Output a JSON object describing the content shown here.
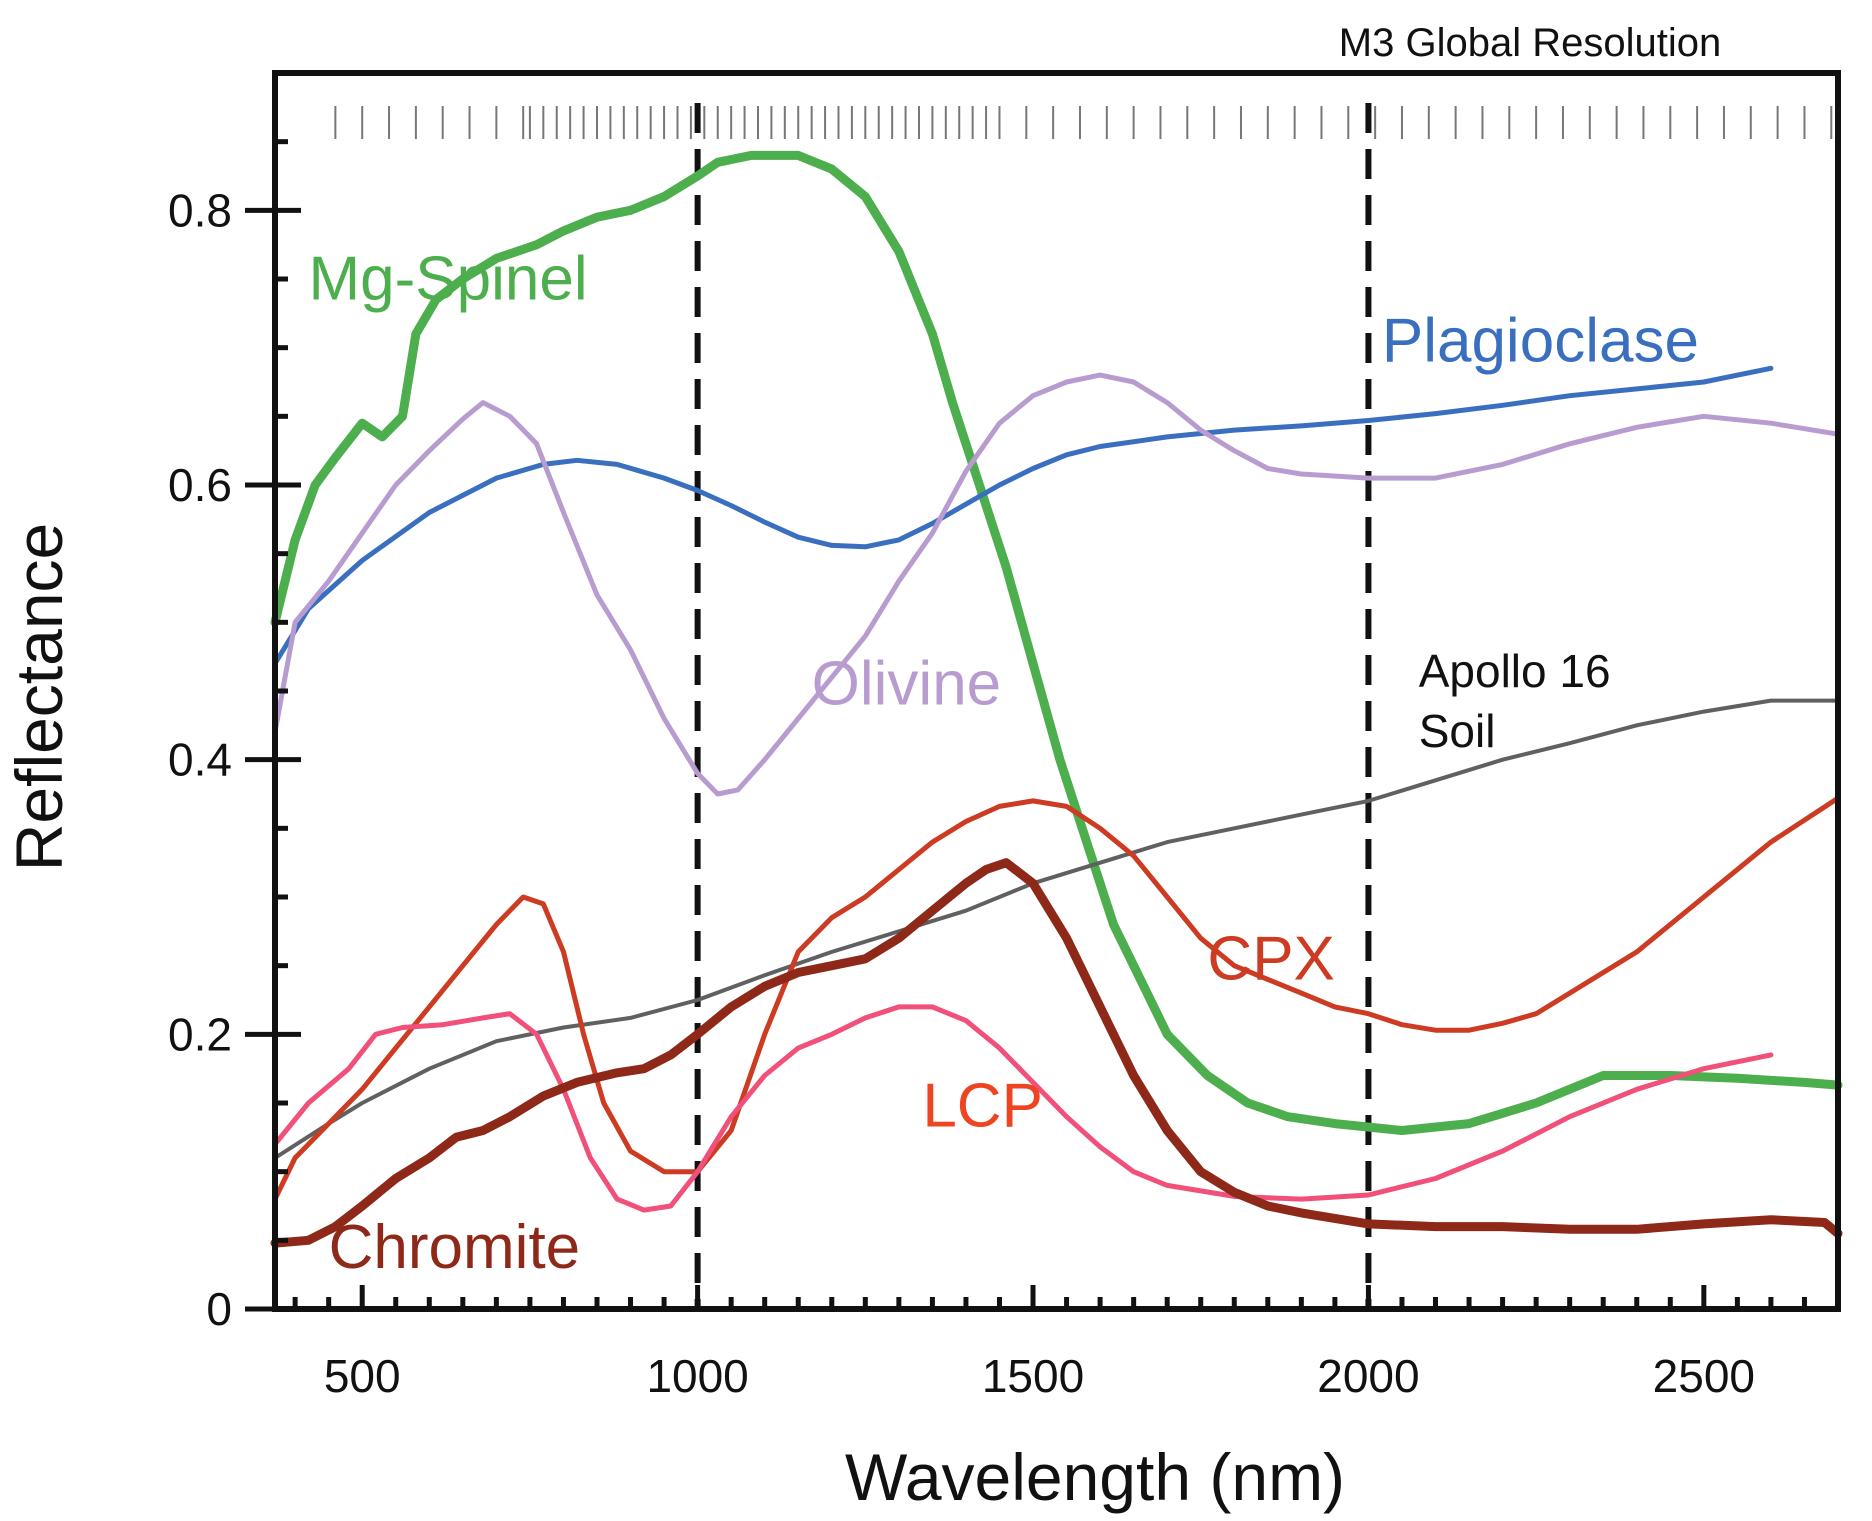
{
  "chart_data": {
    "type": "line",
    "title": "",
    "annotation_top": "M3 Global Resolution",
    "xlabel": "Wavelength (nm)",
    "ylabel": "Reflectance",
    "xlim": [
      370,
      2700
    ],
    "ylim": [
      0,
      0.9
    ],
    "x_ticks": [
      500,
      1000,
      1500,
      2000,
      2500
    ],
    "y_ticks": [
      0,
      0.2,
      0.4,
      0.6,
      0.8
    ],
    "x_tick_labels": [
      "500",
      "1000",
      "1500",
      "2000",
      "2500"
    ],
    "y_tick_labels": [
      "0",
      "0.2",
      "0.4",
      "0.6",
      "0.8"
    ],
    "vertical_dashed_lines": [
      1000,
      2000
    ],
    "m3_bands": [
      460,
      500,
      540,
      580,
      620,
      660,
      700,
      740,
      750,
      770,
      790,
      810,
      830,
      850,
      870,
      890,
      910,
      930,
      950,
      970,
      990,
      1010,
      1030,
      1050,
      1070,
      1090,
      1110,
      1130,
      1150,
      1170,
      1190,
      1210,
      1230,
      1250,
      1270,
      1290,
      1310,
      1330,
      1350,
      1370,
      1390,
      1410,
      1430,
      1450,
      1490,
      1530,
      1570,
      1610,
      1650,
      1690,
      1730,
      1770,
      1810,
      1850,
      1890,
      1930,
      1970,
      2010,
      2050,
      2090,
      2130,
      2170,
      2210,
      2250,
      2290,
      2330,
      2370,
      2410,
      2450,
      2490,
      2530,
      2570,
      2610,
      2650,
      2690
    ],
    "grid": false,
    "legend": "none",
    "series": [
      {
        "name": "Mg-Spinel",
        "color": "#4cae4c",
        "stroke_width": 9,
        "label_x": 420,
        "label_y": 0.735,
        "points": [
          [
            370,
            0.5
          ],
          [
            400,
            0.56
          ],
          [
            430,
            0.6
          ],
          [
            460,
            0.62
          ],
          [
            500,
            0.645
          ],
          [
            530,
            0.635
          ],
          [
            560,
            0.65
          ],
          [
            580,
            0.71
          ],
          [
            610,
            0.735
          ],
          [
            650,
            0.75
          ],
          [
            700,
            0.765
          ],
          [
            760,
            0.775
          ],
          [
            800,
            0.785
          ],
          [
            850,
            0.795
          ],
          [
            900,
            0.8
          ],
          [
            950,
            0.81
          ],
          [
            1000,
            0.825
          ],
          [
            1030,
            0.835
          ],
          [
            1080,
            0.84
          ],
          [
            1150,
            0.84
          ],
          [
            1200,
            0.83
          ],
          [
            1250,
            0.81
          ],
          [
            1300,
            0.77
          ],
          [
            1350,
            0.71
          ],
          [
            1380,
            0.66
          ],
          [
            1420,
            0.6
          ],
          [
            1460,
            0.54
          ],
          [
            1500,
            0.47
          ],
          [
            1540,
            0.4
          ],
          [
            1580,
            0.34
          ],
          [
            1620,
            0.28
          ],
          [
            1660,
            0.24
          ],
          [
            1700,
            0.2
          ],
          [
            1760,
            0.17
          ],
          [
            1820,
            0.15
          ],
          [
            1880,
            0.14
          ],
          [
            1950,
            0.135
          ],
          [
            2050,
            0.13
          ],
          [
            2150,
            0.135
          ],
          [
            2250,
            0.15
          ],
          [
            2350,
            0.17
          ],
          [
            2450,
            0.17
          ],
          [
            2550,
            0.168
          ],
          [
            2650,
            0.165
          ],
          [
            2700,
            0.163
          ]
        ]
      },
      {
        "name": "Plagioclase",
        "color": "#3a6fc0",
        "stroke_width": 5,
        "label_x": 2020,
        "label_y": 0.69,
        "points": [
          [
            370,
            0.47
          ],
          [
            420,
            0.51
          ],
          [
            500,
            0.545
          ],
          [
            600,
            0.58
          ],
          [
            700,
            0.605
          ],
          [
            770,
            0.615
          ],
          [
            820,
            0.618
          ],
          [
            880,
            0.615
          ],
          [
            950,
            0.605
          ],
          [
            1000,
            0.596
          ],
          [
            1050,
            0.585
          ],
          [
            1100,
            0.573
          ],
          [
            1150,
            0.562
          ],
          [
            1200,
            0.556
          ],
          [
            1250,
            0.555
          ],
          [
            1300,
            0.56
          ],
          [
            1350,
            0.572
          ],
          [
            1400,
            0.586
          ],
          [
            1450,
            0.6
          ],
          [
            1500,
            0.612
          ],
          [
            1550,
            0.622
          ],
          [
            1600,
            0.628
          ],
          [
            1700,
            0.635
          ],
          [
            1800,
            0.64
          ],
          [
            1900,
            0.643
          ],
          [
            2000,
            0.647
          ],
          [
            2100,
            0.652
          ],
          [
            2200,
            0.658
          ],
          [
            2300,
            0.665
          ],
          [
            2400,
            0.67
          ],
          [
            2500,
            0.675
          ],
          [
            2600,
            0.685
          ]
        ]
      },
      {
        "name": "Olivine",
        "color": "#b89cd0",
        "stroke_width": 5,
        "label_x": 1170,
        "label_y": 0.44,
        "points": [
          [
            370,
            0.42
          ],
          [
            400,
            0.5
          ],
          [
            450,
            0.53
          ],
          [
            500,
            0.565
          ],
          [
            550,
            0.6
          ],
          [
            600,
            0.625
          ],
          [
            650,
            0.648
          ],
          [
            680,
            0.66
          ],
          [
            720,
            0.65
          ],
          [
            760,
            0.63
          ],
          [
            800,
            0.58
          ],
          [
            850,
            0.52
          ],
          [
            900,
            0.48
          ],
          [
            950,
            0.43
          ],
          [
            1000,
            0.39
          ],
          [
            1030,
            0.375
          ],
          [
            1060,
            0.378
          ],
          [
            1100,
            0.4
          ],
          [
            1150,
            0.43
          ],
          [
            1200,
            0.46
          ],
          [
            1250,
            0.49
          ],
          [
            1300,
            0.53
          ],
          [
            1350,
            0.565
          ],
          [
            1400,
            0.61
          ],
          [
            1450,
            0.645
          ],
          [
            1500,
            0.665
          ],
          [
            1550,
            0.675
          ],
          [
            1600,
            0.68
          ],
          [
            1650,
            0.675
          ],
          [
            1700,
            0.66
          ],
          [
            1750,
            0.64
          ],
          [
            1800,
            0.625
          ],
          [
            1850,
            0.612
          ],
          [
            1900,
            0.608
          ],
          [
            2000,
            0.605
          ],
          [
            2100,
            0.605
          ],
          [
            2200,
            0.615
          ],
          [
            2300,
            0.63
          ],
          [
            2400,
            0.642
          ],
          [
            2500,
            0.65
          ],
          [
            2600,
            0.645
          ],
          [
            2700,
            0.637
          ]
        ]
      },
      {
        "name": "Apollo 16 Soil",
        "label_line1": "Apollo 16",
        "label_line2": "Soil",
        "color": "#606060",
        "stroke_width": 4,
        "label_x": 2075,
        "label_y": 0.453,
        "points": [
          [
            370,
            0.11
          ],
          [
            450,
            0.135
          ],
          [
            500,
            0.15
          ],
          [
            600,
            0.175
          ],
          [
            700,
            0.195
          ],
          [
            800,
            0.205
          ],
          [
            900,
            0.212
          ],
          [
            1000,
            0.225
          ],
          [
            1100,
            0.243
          ],
          [
            1200,
            0.26
          ],
          [
            1300,
            0.275
          ],
          [
            1400,
            0.29
          ],
          [
            1500,
            0.31
          ],
          [
            1600,
            0.325
          ],
          [
            1700,
            0.34
          ],
          [
            1800,
            0.35
          ],
          [
            1900,
            0.36
          ],
          [
            2000,
            0.37
          ],
          [
            2100,
            0.385
          ],
          [
            2200,
            0.4
          ],
          [
            2300,
            0.412
          ],
          [
            2400,
            0.425
          ],
          [
            2500,
            0.435
          ],
          [
            2600,
            0.443
          ],
          [
            2700,
            0.443
          ]
        ]
      },
      {
        "name": "CPX",
        "color": "#cc3b22",
        "stroke_width": 5,
        "label_x": 1760,
        "label_y": 0.24,
        "points": [
          [
            370,
            0.08
          ],
          [
            400,
            0.11
          ],
          [
            450,
            0.135
          ],
          [
            500,
            0.16
          ],
          [
            550,
            0.19
          ],
          [
            600,
            0.22
          ],
          [
            650,
            0.25
          ],
          [
            700,
            0.28
          ],
          [
            740,
            0.3
          ],
          [
            770,
            0.295
          ],
          [
            800,
            0.26
          ],
          [
            830,
            0.2
          ],
          [
            860,
            0.15
          ],
          [
            900,
            0.115
          ],
          [
            950,
            0.1
          ],
          [
            1000,
            0.1
          ],
          [
            1050,
            0.13
          ],
          [
            1100,
            0.2
          ],
          [
            1150,
            0.26
          ],
          [
            1200,
            0.285
          ],
          [
            1250,
            0.3
          ],
          [
            1300,
            0.32
          ],
          [
            1350,
            0.34
          ],
          [
            1400,
            0.355
          ],
          [
            1450,
            0.366
          ],
          [
            1500,
            0.37
          ],
          [
            1550,
            0.366
          ],
          [
            1600,
            0.35
          ],
          [
            1650,
            0.33
          ],
          [
            1700,
            0.3
          ],
          [
            1750,
            0.27
          ],
          [
            1800,
            0.25
          ],
          [
            1850,
            0.24
          ],
          [
            1900,
            0.23
          ],
          [
            1950,
            0.22
          ],
          [
            2000,
            0.215
          ],
          [
            2050,
            0.207
          ],
          [
            2100,
            0.203
          ],
          [
            2150,
            0.203
          ],
          [
            2200,
            0.208
          ],
          [
            2250,
            0.215
          ],
          [
            2300,
            0.23
          ],
          [
            2400,
            0.26
          ],
          [
            2500,
            0.3
          ],
          [
            2600,
            0.34
          ],
          [
            2700,
            0.372
          ]
        ]
      },
      {
        "name": "LCP",
        "color": "#f0507a",
        "label_color": "#ee4422",
        "stroke_width": 5,
        "label_x": 1335,
        "label_y": 0.133,
        "points": [
          [
            370,
            0.12
          ],
          [
            420,
            0.15
          ],
          [
            480,
            0.175
          ],
          [
            520,
            0.2
          ],
          [
            560,
            0.205
          ],
          [
            620,
            0.207
          ],
          [
            680,
            0.212
          ],
          [
            720,
            0.215
          ],
          [
            760,
            0.2
          ],
          [
            800,
            0.16
          ],
          [
            840,
            0.11
          ],
          [
            880,
            0.08
          ],
          [
            920,
            0.072
          ],
          [
            960,
            0.075
          ],
          [
            1000,
            0.1
          ],
          [
            1050,
            0.14
          ],
          [
            1100,
            0.17
          ],
          [
            1150,
            0.19
          ],
          [
            1200,
            0.2
          ],
          [
            1250,
            0.212
          ],
          [
            1300,
            0.22
          ],
          [
            1350,
            0.22
          ],
          [
            1400,
            0.21
          ],
          [
            1450,
            0.19
          ],
          [
            1500,
            0.165
          ],
          [
            1550,
            0.14
          ],
          [
            1600,
            0.118
          ],
          [
            1650,
            0.1
          ],
          [
            1700,
            0.09
          ],
          [
            1800,
            0.082
          ],
          [
            1900,
            0.08
          ],
          [
            2000,
            0.083
          ],
          [
            2100,
            0.095
          ],
          [
            2200,
            0.115
          ],
          [
            2300,
            0.14
          ],
          [
            2400,
            0.16
          ],
          [
            2500,
            0.175
          ],
          [
            2600,
            0.185
          ]
        ]
      },
      {
        "name": "Chromite",
        "color": "#8e2818",
        "stroke_width": 9,
        "label_x": 450,
        "label_y": 0.03,
        "points": [
          [
            370,
            0.048
          ],
          [
            420,
            0.05
          ],
          [
            460,
            0.06
          ],
          [
            500,
            0.075
          ],
          [
            550,
            0.095
          ],
          [
            600,
            0.11
          ],
          [
            640,
            0.125
          ],
          [
            680,
            0.13
          ],
          [
            720,
            0.14
          ],
          [
            770,
            0.155
          ],
          [
            820,
            0.165
          ],
          [
            880,
            0.172
          ],
          [
            920,
            0.175
          ],
          [
            960,
            0.185
          ],
          [
            1000,
            0.2
          ],
          [
            1050,
            0.22
          ],
          [
            1100,
            0.235
          ],
          [
            1150,
            0.245
          ],
          [
            1200,
            0.25
          ],
          [
            1250,
            0.255
          ],
          [
            1300,
            0.27
          ],
          [
            1350,
            0.29
          ],
          [
            1400,
            0.31
          ],
          [
            1430,
            0.32
          ],
          [
            1460,
            0.325
          ],
          [
            1500,
            0.31
          ],
          [
            1550,
            0.27
          ],
          [
            1600,
            0.22
          ],
          [
            1650,
            0.17
          ],
          [
            1700,
            0.13
          ],
          [
            1750,
            0.1
          ],
          [
            1800,
            0.085
          ],
          [
            1850,
            0.075
          ],
          [
            1900,
            0.07
          ],
          [
            2000,
            0.062
          ],
          [
            2100,
            0.06
          ],
          [
            2200,
            0.06
          ],
          [
            2300,
            0.058
          ],
          [
            2400,
            0.058
          ],
          [
            2500,
            0.062
          ],
          [
            2600,
            0.065
          ],
          [
            2680,
            0.063
          ],
          [
            2700,
            0.055
          ]
        ]
      }
    ]
  }
}
